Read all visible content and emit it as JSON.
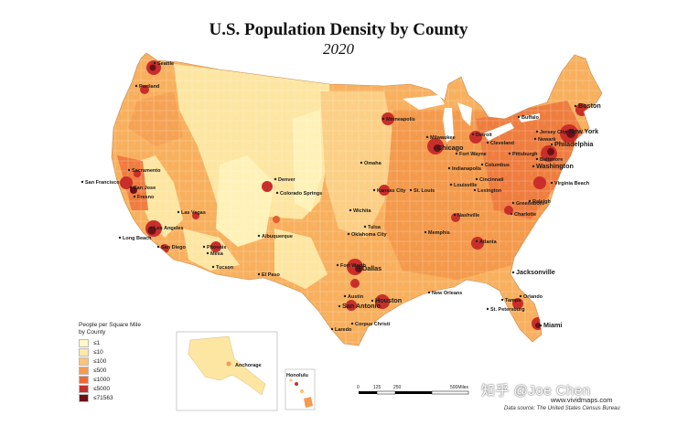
{
  "title": "U.S. Population Density by County",
  "subtitle": "2020",
  "legend": {
    "title_line1": "People per Square Mile",
    "title_line2": "by County",
    "items": [
      {
        "label": "≤1",
        "color": "#fff7c4"
      },
      {
        "label": "≤10",
        "color": "#fde9a6"
      },
      {
        "label": "≤100",
        "color": "#fbc478"
      },
      {
        "label": "≤500",
        "color": "#f59a4e"
      },
      {
        "label": "≤1000",
        "color": "#ec6a38"
      },
      {
        "label": "≤5000",
        "color": "#c92f2a"
      },
      {
        "label": "≤71563",
        "color": "#6e0f18"
      }
    ]
  },
  "scale": {
    "ticks": [
      "0",
      "125",
      "250",
      "500Miles"
    ]
  },
  "watermark": "知乎 @Joe Chen",
  "site": "www.vividmaps.com",
  "source": "Data source: The United States Census Bureau",
  "insets": {
    "alaska_city": "Anchorage",
    "hawaii_city": "Honolulu"
  },
  "cities": [
    {
      "name": "Seattle",
      "major": false
    },
    {
      "name": "Portland",
      "major": false
    },
    {
      "name": "San Francisco",
      "major": false
    },
    {
      "name": "Sacramento",
      "major": false
    },
    {
      "name": "San Jose",
      "major": false
    },
    {
      "name": "Fresno",
      "major": false
    },
    {
      "name": "Los Angeles",
      "major": false
    },
    {
      "name": "Long Beach",
      "major": false
    },
    {
      "name": "San Diego",
      "major": false
    },
    {
      "name": "Las Vegas",
      "major": false
    },
    {
      "name": "Phoenix",
      "major": false
    },
    {
      "name": "Mesa",
      "major": false
    },
    {
      "name": "Tucson",
      "major": false
    },
    {
      "name": "Albuquerque",
      "major": false
    },
    {
      "name": "El Paso",
      "major": false
    },
    {
      "name": "Denver",
      "major": false
    },
    {
      "name": "Colorado Springs",
      "major": false
    },
    {
      "name": "Minneapolis",
      "major": false
    },
    {
      "name": "Omaha",
      "major": false
    },
    {
      "name": "Kansas City",
      "major": false
    },
    {
      "name": "Wichita",
      "major": false
    },
    {
      "name": "Tulsa",
      "major": false
    },
    {
      "name": "Oklahoma City",
      "major": false
    },
    {
      "name": "Dallas",
      "major": true
    },
    {
      "name": "Fort Worth",
      "major": false
    },
    {
      "name": "Austin",
      "major": false
    },
    {
      "name": "San Antonio",
      "major": true
    },
    {
      "name": "Houston",
      "major": true
    },
    {
      "name": "Corpus Christi",
      "major": false
    },
    {
      "name": "Laredo",
      "major": false
    },
    {
      "name": "Milwaukee",
      "major": false
    },
    {
      "name": "Chicago",
      "major": true
    },
    {
      "name": "Detroit",
      "major": false
    },
    {
      "name": "St. Louis",
      "major": false
    },
    {
      "name": "Memphis",
      "major": false
    },
    {
      "name": "Nashville",
      "major": false
    },
    {
      "name": "New Orleans",
      "major": false
    },
    {
      "name": "Fort Wayne",
      "major": false
    },
    {
      "name": "Indianapolis",
      "major": false
    },
    {
      "name": "Columbus",
      "major": false
    },
    {
      "name": "Cleveland",
      "major": false
    },
    {
      "name": "Cincinnati",
      "major": false
    },
    {
      "name": "Lexington",
      "major": false
    },
    {
      "name": "Louisville",
      "major": false
    },
    {
      "name": "Atlanta",
      "major": false
    },
    {
      "name": "Charlotte",
      "major": false
    },
    {
      "name": "Greensboro",
      "major": false
    },
    {
      "name": "Raleigh",
      "major": false
    },
    {
      "name": "Jacksonville",
      "major": true
    },
    {
      "name": "Tampa",
      "major": false
    },
    {
      "name": "St. Petersburg",
      "major": false
    },
    {
      "name": "Orlando",
      "major": false
    },
    {
      "name": "Miami",
      "major": true
    },
    {
      "name": "Pittsburgh",
      "major": false
    },
    {
      "name": "Philadelphia",
      "major": true
    },
    {
      "name": "New York",
      "major": true
    },
    {
      "name": "Jersey City",
      "major": false
    },
    {
      "name": "Newark",
      "major": false
    },
    {
      "name": "Boston",
      "major": true
    },
    {
      "name": "Baltimore",
      "major": false
    },
    {
      "name": "Washington",
      "major": true
    },
    {
      "name": "Virginia Beach",
      "major": false
    },
    {
      "name": "Buffalo",
      "major": false
    }
  ]
}
